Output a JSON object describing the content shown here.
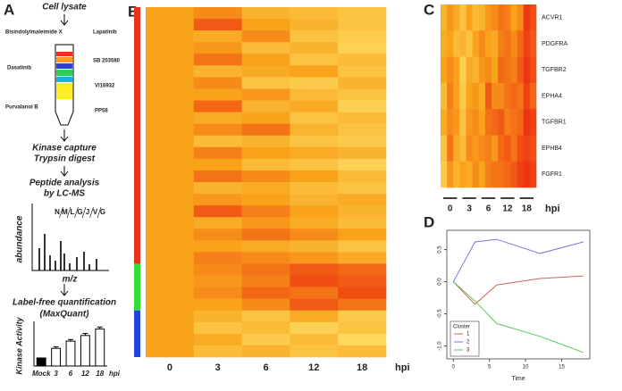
{
  "panels": [
    "A",
    "B",
    "C",
    "D"
  ],
  "workflow": {
    "steps": [
      "Cell lysate",
      "Kinase capture",
      "Trypsin digest",
      "Peptide analysis",
      "by LC-MS",
      "Label-free quantification",
      "(MaxQuant)"
    ],
    "inhibitors": [
      "Bisindolylmaleimide X",
      "Lapatinib",
      "Dasatinib",
      "SB 203580",
      "VI16932",
      "Purvalanol B",
      "PP58"
    ],
    "peptide": [
      "N",
      "M",
      "L",
      "G",
      "J",
      "V",
      "G"
    ],
    "spectrum_ylabel": "abundance",
    "spectrum_xlabel": "m/z"
  },
  "chart_data": [
    {
      "type": "bar",
      "categories": [
        "Mock",
        "3",
        "6",
        "12",
        "18"
      ],
      "values": [
        1,
        2.2,
        3.1,
        3.8,
        4.6
      ],
      "errors": [
        0,
        0.2,
        0.2,
        0.25,
        0.25
      ],
      "colors": [
        "#000000",
        "#ffffff",
        "#ffffff",
        "#ffffff",
        "#ffffff"
      ],
      "ylim": [
        0,
        5
      ],
      "xlabel": "hpi",
      "ylabel": "Kinase Activity"
    },
    {
      "type": "heatmap",
      "categories": [
        "0",
        "3",
        "6",
        "12",
        "18"
      ],
      "xlabel": "hpi",
      "zlim": [
        0,
        1
      ],
      "colorscale": [
        "#fff27a",
        "#f9a31b",
        "#ec2a10"
      ],
      "clusters": [
        {
          "color": "#e8321e",
          "rows": 22
        },
        {
          "color": "#33dd33",
          "rows": 4
        },
        {
          "color": "#2244dd",
          "rows": 4
        }
      ],
      "values": [
        [
          0.5,
          0.6,
          0.4,
          0.35,
          0.3
        ],
        [
          0.5,
          0.8,
          0.5,
          0.4,
          0.3
        ],
        [
          0.5,
          0.45,
          0.6,
          0.3,
          0.25
        ],
        [
          0.5,
          0.55,
          0.35,
          0.4,
          0.2
        ],
        [
          0.5,
          0.7,
          0.5,
          0.3,
          0.35
        ],
        [
          0.5,
          0.4,
          0.45,
          0.5,
          0.3
        ],
        [
          0.5,
          0.6,
          0.3,
          0.25,
          0.4
        ],
        [
          0.5,
          0.5,
          0.55,
          0.35,
          0.3
        ],
        [
          0.5,
          0.75,
          0.4,
          0.45,
          0.2
        ],
        [
          0.5,
          0.45,
          0.5,
          0.3,
          0.35
        ],
        [
          0.5,
          0.6,
          0.7,
          0.4,
          0.3
        ],
        [
          0.5,
          0.35,
          0.4,
          0.3,
          0.25
        ],
        [
          0.5,
          0.65,
          0.5,
          0.45,
          0.4
        ],
        [
          0.5,
          0.5,
          0.35,
          0.3,
          0.2
        ],
        [
          0.5,
          0.7,
          0.6,
          0.5,
          0.35
        ],
        [
          0.5,
          0.4,
          0.45,
          0.35,
          0.3
        ],
        [
          0.5,
          0.55,
          0.5,
          0.4,
          0.45
        ],
        [
          0.5,
          0.8,
          0.65,
          0.5,
          0.4
        ],
        [
          0.5,
          0.45,
          0.55,
          0.45,
          0.35
        ],
        [
          0.5,
          0.6,
          0.7,
          0.6,
          0.5
        ],
        [
          0.5,
          0.5,
          0.45,
          0.4,
          0.3
        ],
        [
          0.5,
          0.65,
          0.6,
          0.55,
          0.45
        ],
        [
          0.5,
          0.6,
          0.7,
          0.8,
          0.75
        ],
        [
          0.5,
          0.55,
          0.65,
          0.85,
          0.8
        ],
        [
          0.5,
          0.6,
          0.75,
          0.7,
          0.85
        ],
        [
          0.5,
          0.5,
          0.6,
          0.8,
          0.7
        ],
        [
          0.5,
          0.4,
          0.3,
          0.45,
          0.25
        ],
        [
          0.5,
          0.3,
          0.35,
          0.2,
          0.3
        ],
        [
          0.5,
          0.45,
          0.25,
          0.35,
          0.15
        ],
        [
          0.5,
          0.35,
          0.4,
          0.3,
          0.35
        ]
      ]
    },
    {
      "type": "heatmap",
      "categories": [
        null,
        null,
        null,
        null,
        null,
        null,
        null,
        null,
        null,
        null,
        null,
        null,
        null,
        null,
        null
      ],
      "column_groups": [
        "0",
        "3",
        "6",
        "12",
        "18"
      ],
      "xlabel": "hpi",
      "zlim": [
        0,
        1
      ],
      "colorscale": [
        "#fff27a",
        "#f9a31b",
        "#ec2a10"
      ],
      "row_labels": [
        "ACVR1",
        "PDGFRA",
        "TGFBR2",
        "EPHA4",
        "TGFBR1",
        "EPHB4",
        "FGFR1"
      ],
      "values": [
        [
          0.4,
          0.55,
          0.45,
          0.3,
          0.5,
          0.35,
          0.4,
          0.55,
          0.6,
          0.7,
          0.65,
          0.5,
          0.6,
          0.95,
          0.85
        ],
        [
          0.45,
          0.5,
          0.35,
          0.4,
          0.3,
          0.5,
          0.6,
          0.5,
          0.45,
          0.65,
          0.7,
          0.6,
          0.75,
          0.9,
          0.8
        ],
        [
          0.5,
          0.6,
          0.5,
          0.2,
          0.45,
          0.4,
          0.55,
          0.6,
          0.5,
          0.75,
          0.7,
          0.65,
          0.8,
          0.95,
          0.85
        ],
        [
          0.35,
          0.65,
          0.5,
          0.25,
          0.5,
          0.55,
          0.45,
          0.8,
          0.6,
          0.6,
          0.7,
          0.75,
          0.7,
          0.9,
          0.75
        ],
        [
          0.45,
          0.6,
          0.55,
          0.3,
          0.55,
          0.6,
          0.5,
          0.7,
          0.75,
          0.8,
          0.65,
          0.7,
          0.75,
          0.95,
          0.9
        ],
        [
          0.3,
          0.7,
          0.45,
          0.35,
          0.6,
          0.55,
          0.6,
          0.65,
          0.55,
          0.75,
          0.8,
          0.7,
          0.85,
          0.9,
          0.85
        ],
        [
          0.25,
          0.55,
          0.4,
          0.5,
          0.45,
          0.6,
          0.5,
          0.65,
          0.7,
          0.7,
          0.75,
          0.8,
          0.9,
          0.95,
          0.9
        ]
      ]
    },
    {
      "type": "line",
      "x": [
        0,
        3,
        6,
        12,
        18
      ],
      "xlim": [
        -0.9,
        18.9
      ],
      "ylim": [
        -1.2,
        0.8
      ],
      "xticks": [
        0,
        5,
        10,
        15
      ],
      "yticks": [
        {
          "value": -1,
          "label": "-1.0"
        },
        {
          "value": -0.5,
          "label": "-0.5"
        },
        {
          "value": 0,
          "label": "0.0"
        },
        {
          "value": 0.5,
          "label": "0.5"
        }
      ],
      "xlabel": "Time",
      "legend_title": "Cluster",
      "legend": "bottom-left",
      "series": [
        {
          "name": "1",
          "color": "#cc6655",
          "values": [
            0,
            -0.35,
            -0.05,
            0.05,
            0.09
          ]
        },
        {
          "name": "2",
          "color": "#7777dd",
          "values": [
            0,
            0.62,
            0.66,
            0.44,
            0.62
          ]
        },
        {
          "name": "3",
          "color": "#55cc55",
          "values": [
            0,
            -0.3,
            -0.65,
            -0.85,
            -1.1
          ]
        }
      ]
    }
  ]
}
